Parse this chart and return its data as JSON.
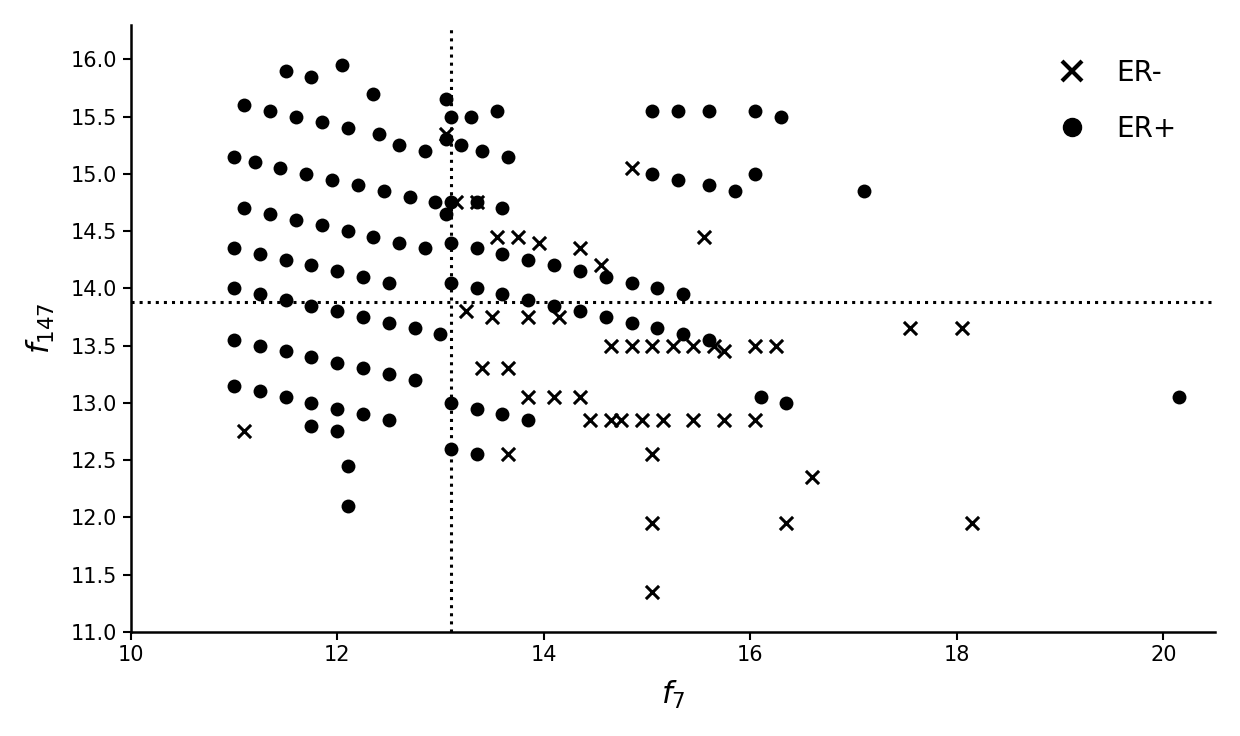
{
  "xlabel": "$f_7$",
  "ylabel": "$f_{147}$",
  "xlim": [
    10,
    20.5
  ],
  "ylim": [
    11,
    16.3
  ],
  "xticks": [
    10,
    12,
    14,
    16,
    18,
    20
  ],
  "yticks": [
    11,
    11.5,
    12,
    12.5,
    13,
    13.5,
    14,
    14.5,
    15,
    15.5,
    16
  ],
  "vline": 13.1,
  "hline": 13.88,
  "bg_color": "#ffffff",
  "marker_color": "#000000",
  "er_plus": [
    [
      11.5,
      15.9
    ],
    [
      11.75,
      15.85
    ],
    [
      12.05,
      15.95
    ],
    [
      12.35,
      15.7
    ],
    [
      11.1,
      15.6
    ],
    [
      11.35,
      15.55
    ],
    [
      11.6,
      15.5
    ],
    [
      11.85,
      15.45
    ],
    [
      12.1,
      15.4
    ],
    [
      12.4,
      15.35
    ],
    [
      12.6,
      15.25
    ],
    [
      12.85,
      15.2
    ],
    [
      13.05,
      15.65
    ],
    [
      13.1,
      15.5
    ],
    [
      13.3,
      15.5
    ],
    [
      13.55,
      15.55
    ],
    [
      13.05,
      15.3
    ],
    [
      13.2,
      15.25
    ],
    [
      13.4,
      15.2
    ],
    [
      13.65,
      15.15
    ],
    [
      11.0,
      15.15
    ],
    [
      11.2,
      15.1
    ],
    [
      11.45,
      15.05
    ],
    [
      11.7,
      15.0
    ],
    [
      11.95,
      14.95
    ],
    [
      12.2,
      14.9
    ],
    [
      12.45,
      14.85
    ],
    [
      12.7,
      14.8
    ],
    [
      12.95,
      14.75
    ],
    [
      13.05,
      14.65
    ],
    [
      15.05,
      15.55
    ],
    [
      15.3,
      15.55
    ],
    [
      15.6,
      15.55
    ],
    [
      15.05,
      15.0
    ],
    [
      15.3,
      14.95
    ],
    [
      15.6,
      14.9
    ],
    [
      15.85,
      14.85
    ],
    [
      16.05,
      15.55
    ],
    [
      16.3,
      15.5
    ],
    [
      16.05,
      15.0
    ],
    [
      17.1,
      14.85
    ],
    [
      11.1,
      14.7
    ],
    [
      11.35,
      14.65
    ],
    [
      11.6,
      14.6
    ],
    [
      11.85,
      14.55
    ],
    [
      12.1,
      14.5
    ],
    [
      12.35,
      14.45
    ],
    [
      12.6,
      14.4
    ],
    [
      12.85,
      14.35
    ],
    [
      13.1,
      14.75
    ],
    [
      13.35,
      14.75
    ],
    [
      13.6,
      14.7
    ],
    [
      13.1,
      14.4
    ],
    [
      13.35,
      14.35
    ],
    [
      13.6,
      14.3
    ],
    [
      13.85,
      14.25
    ],
    [
      14.1,
      14.2
    ],
    [
      14.35,
      14.15
    ],
    [
      14.6,
      14.1
    ],
    [
      14.85,
      14.05
    ],
    [
      15.1,
      14.0
    ],
    [
      15.35,
      13.95
    ],
    [
      13.1,
      14.05
    ],
    [
      13.35,
      14.0
    ],
    [
      13.6,
      13.95
    ],
    [
      13.85,
      13.9
    ],
    [
      14.1,
      13.85
    ],
    [
      14.35,
      13.8
    ],
    [
      14.6,
      13.75
    ],
    [
      14.85,
      13.7
    ],
    [
      15.1,
      13.65
    ],
    [
      15.35,
      13.6
    ],
    [
      15.6,
      13.55
    ],
    [
      11.0,
      14.35
    ],
    [
      11.25,
      14.3
    ],
    [
      11.5,
      14.25
    ],
    [
      11.75,
      14.2
    ],
    [
      12.0,
      14.15
    ],
    [
      12.25,
      14.1
    ],
    [
      12.5,
      14.05
    ],
    [
      11.0,
      14.0
    ],
    [
      11.25,
      13.95
    ],
    [
      11.5,
      13.9
    ],
    [
      11.75,
      13.85
    ],
    [
      12.0,
      13.8
    ],
    [
      12.25,
      13.75
    ],
    [
      12.5,
      13.7
    ],
    [
      12.75,
      13.65
    ],
    [
      13.0,
      13.6
    ],
    [
      11.0,
      13.55
    ],
    [
      11.25,
      13.5
    ],
    [
      11.5,
      13.45
    ],
    [
      11.75,
      13.4
    ],
    [
      12.0,
      13.35
    ],
    [
      12.25,
      13.3
    ],
    [
      12.5,
      13.25
    ],
    [
      12.75,
      13.2
    ],
    [
      11.0,
      13.15
    ],
    [
      11.25,
      13.1
    ],
    [
      11.5,
      13.05
    ],
    [
      11.75,
      13.0
    ],
    [
      12.0,
      12.95
    ],
    [
      12.25,
      12.9
    ],
    [
      12.5,
      12.85
    ],
    [
      11.75,
      12.8
    ],
    [
      12.0,
      12.75
    ],
    [
      12.1,
      12.1
    ],
    [
      12.1,
      12.45
    ],
    [
      13.1,
      13.0
    ],
    [
      13.35,
      12.95
    ],
    [
      13.6,
      12.9
    ],
    [
      13.85,
      12.85
    ],
    [
      13.1,
      12.6
    ],
    [
      13.35,
      12.55
    ],
    [
      16.1,
      13.05
    ],
    [
      16.35,
      13.0
    ],
    [
      20.15,
      13.05
    ]
  ],
  "er_minus": [
    [
      11.1,
      12.75
    ],
    [
      13.05,
      15.35
    ],
    [
      13.15,
      14.75
    ],
    [
      13.35,
      14.75
    ],
    [
      14.85,
      15.05
    ],
    [
      13.55,
      14.45
    ],
    [
      13.75,
      14.45
    ],
    [
      13.95,
      14.4
    ],
    [
      14.35,
      14.35
    ],
    [
      14.55,
      14.2
    ],
    [
      15.55,
      14.45
    ],
    [
      13.25,
      13.8
    ],
    [
      13.5,
      13.75
    ],
    [
      13.85,
      13.75
    ],
    [
      14.15,
      13.75
    ],
    [
      14.65,
      13.5
    ],
    [
      14.85,
      13.5
    ],
    [
      15.05,
      13.5
    ],
    [
      15.25,
      13.5
    ],
    [
      15.45,
      13.5
    ],
    [
      15.65,
      13.5
    ],
    [
      15.75,
      13.45
    ],
    [
      16.05,
      13.5
    ],
    [
      16.25,
      13.5
    ],
    [
      17.55,
      13.65
    ],
    [
      18.05,
      13.65
    ],
    [
      13.4,
      13.3
    ],
    [
      13.65,
      13.3
    ],
    [
      13.85,
      13.05
    ],
    [
      14.1,
      13.05
    ],
    [
      14.35,
      13.05
    ],
    [
      14.45,
      12.85
    ],
    [
      14.65,
      12.85
    ],
    [
      14.75,
      12.85
    ],
    [
      14.95,
      12.85
    ],
    [
      15.15,
      12.85
    ],
    [
      15.45,
      12.85
    ],
    [
      15.75,
      12.85
    ],
    [
      16.05,
      12.85
    ],
    [
      15.05,
      12.55
    ],
    [
      13.65,
      12.55
    ],
    [
      15.05,
      11.95
    ],
    [
      16.35,
      11.95
    ],
    [
      15.05,
      11.35
    ],
    [
      18.15,
      11.95
    ],
    [
      16.6,
      12.35
    ]
  ]
}
